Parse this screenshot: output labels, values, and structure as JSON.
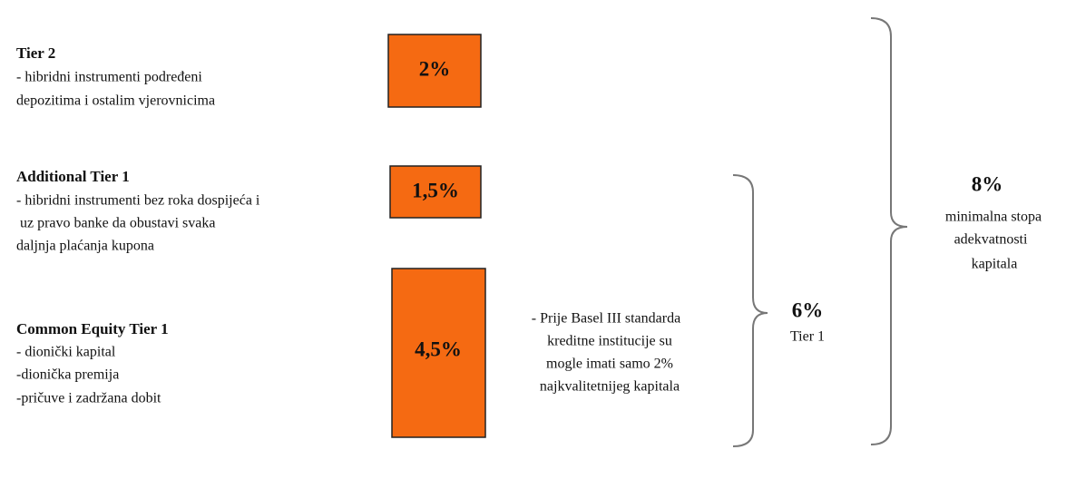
{
  "tiers": [
    {
      "title": "Tier 2",
      "lines": [
        "- hibridni instrumenti podređeni",
        "depozitima i ostalim vjerovnicima"
      ],
      "box": "2%"
    },
    {
      "title": "Additional Tier 1",
      "lines": [
        "- hibridni instrumenti bez roka dospijeća i",
        " uz pravo banke da obustavi svaka",
        "daljnja plaćanja kupona"
      ],
      "box": "1,5%"
    },
    {
      "title": "Common Equity Tier 1",
      "lines": [
        "- dionički kapital",
        "-dionička premija",
        "-pričuve i zadržana dobit"
      ],
      "box": "4,5%"
    }
  ],
  "note": [
    "- Prije Basel III standarda",
    "kreditne institucije su",
    "mogle imati samo 2%",
    "najkvalitetnijeg kapitala"
  ],
  "tier1_brace": {
    "value": "6%",
    "label": "Tier 1"
  },
  "total_brace": {
    "value": "8%",
    "lines": [
      "minimalna stopa",
      "adekvatnosti",
      "kapitala"
    ]
  }
}
